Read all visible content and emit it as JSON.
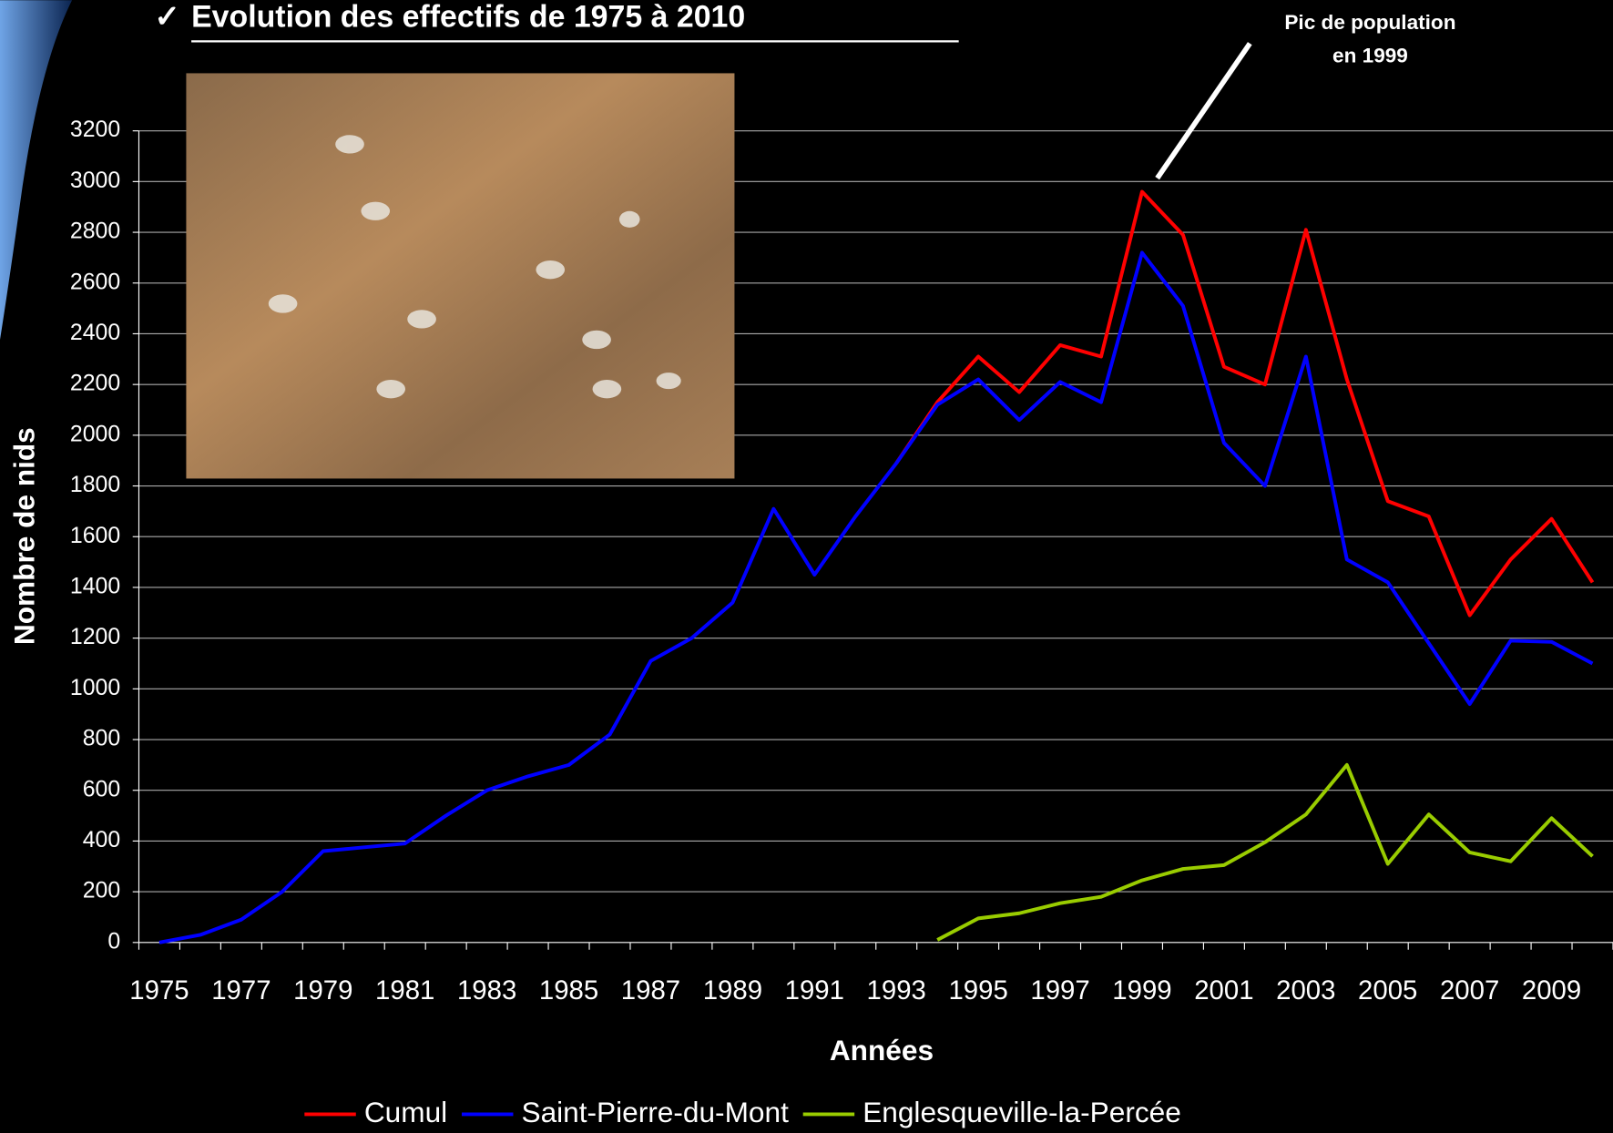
{
  "chart_data": {
    "type": "line",
    "title": "Evolution des effectifs de 1975 à 2010",
    "annotation": [
      "Pic de population",
      "en 1999"
    ],
    "x_label": "Années",
    "y_label": "Nombre de nids",
    "categories": [
      "1975",
      null,
      "1977",
      null,
      "1979",
      null,
      "1981",
      null,
      "1983",
      null,
      "1985",
      null,
      "1987",
      null,
      "1989",
      null,
      "1991",
      null,
      "1993",
      null,
      "1995",
      null,
      "1997",
      null,
      "1999",
      null,
      "2001",
      null,
      "2003",
      null,
      "2005",
      null,
      "2007",
      null,
      "2009",
      null
    ],
    "ylim": [
      0,
      3200
    ],
    "yticks": [
      0,
      200,
      400,
      600,
      800,
      1000,
      1200,
      1400,
      1600,
      1800,
      2000,
      2200,
      2400,
      2600,
      2800,
      3000,
      3200
    ],
    "grid": true,
    "legend": "bottom",
    "series": [
      {
        "name": "Cumul",
        "color": "#ff0000",
        "values": [
          null,
          null,
          null,
          null,
          null,
          null,
          null,
          null,
          null,
          null,
          null,
          null,
          null,
          null,
          null,
          null,
          null,
          null,
          1890,
          2130,
          2310,
          2170,
          2355,
          2310,
          2960,
          2790,
          2270,
          2200,
          2810,
          2220,
          1740,
          1680,
          1290,
          1510,
          1670,
          1420
        ]
      },
      {
        "name": "Saint-Pierre-du-Mont",
        "color": "#0000ff",
        "values": [
          0,
          30,
          90,
          200,
          360,
          375,
          390,
          500,
          600,
          655,
          700,
          820,
          1110,
          1200,
          1340,
          1710,
          1450,
          1680,
          1890,
          2120,
          2220,
          2060,
          2210,
          2130,
          2720,
          2510,
          1970,
          1800,
          2310,
          1510,
          1420,
          1180,
          940,
          1190,
          1185,
          1100
        ]
      },
      {
        "name": "Englesqueville-la-Percée",
        "color": "#99cc00",
        "values": [
          null,
          null,
          null,
          null,
          null,
          null,
          null,
          null,
          null,
          null,
          null,
          null,
          null,
          null,
          null,
          null,
          null,
          null,
          null,
          10,
          95,
          115,
          155,
          180,
          245,
          290,
          305,
          395,
          505,
          700,
          310,
          505,
          355,
          320,
          490,
          340
        ]
      }
    ]
  }
}
